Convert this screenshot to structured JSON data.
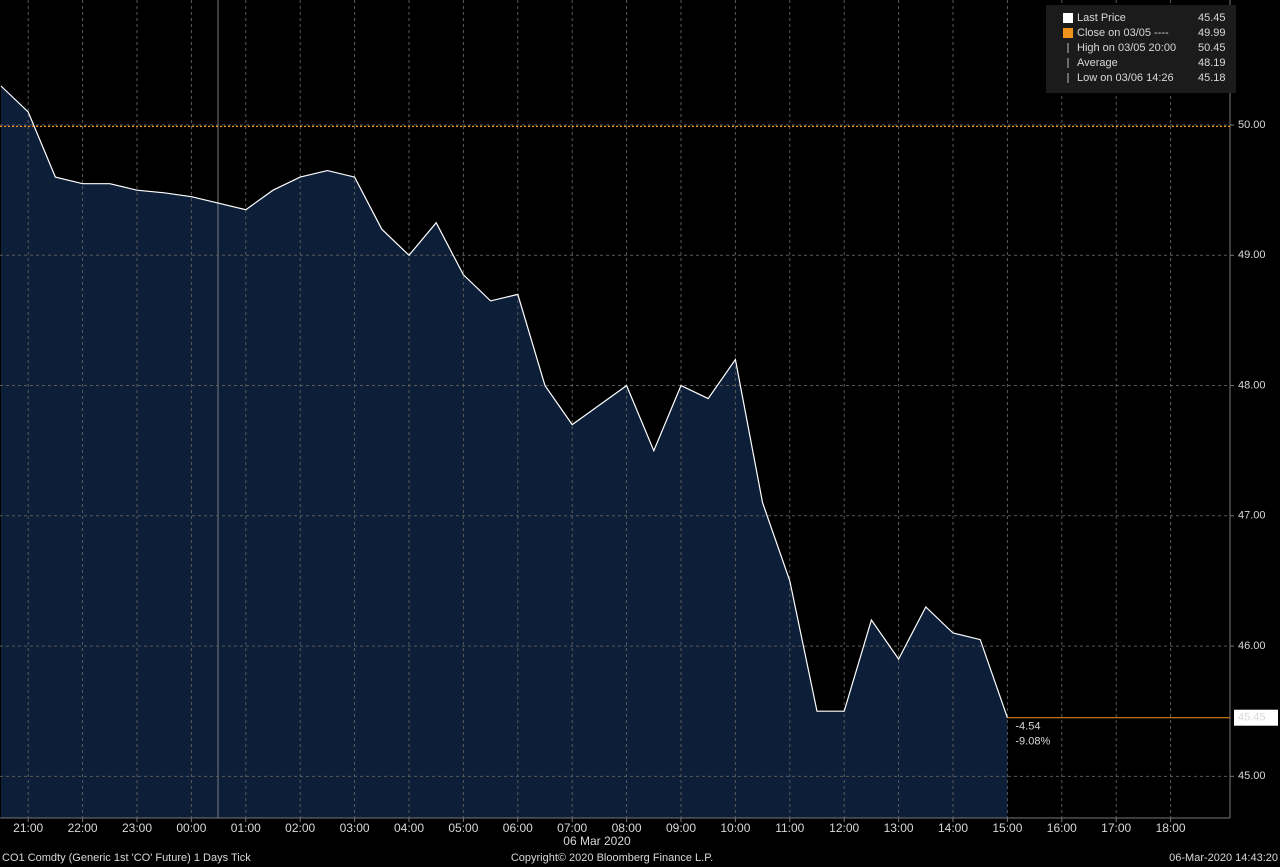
{
  "chart_data": {
    "type": "area",
    "title": "CO1 Comdty (Generic 1st 'CO' Future) 1 Days  Tick",
    "date_label": "06 Mar 2020",
    "copyright": "Copyright© 2020 Bloomberg Finance L.P.",
    "timestamp": "06-Mar-2020 14:43:20",
    "categories": [
      null,
      "21:00",
      null,
      "22:00",
      null,
      "23:00",
      null,
      "00:00",
      null,
      "01:00",
      null,
      "02:00",
      null,
      "03:00",
      null,
      "04:00",
      null,
      "05:00",
      null,
      "06:00",
      null,
      "07:00",
      null,
      "08:00",
      null,
      "09:00",
      null,
      "10:00",
      null,
      "11:00",
      null,
      "12:00",
      null,
      "13:00",
      null,
      "14:00",
      null,
      "15:00",
      null,
      "16:00",
      null,
      "17:00",
      null,
      "18:00",
      null,
      null
    ],
    "series": [
      {
        "name": "Last Price",
        "color": "#ffffff",
        "fill": "#0c1e38",
        "values": [
          50.3,
          50.1,
          49.6,
          49.55,
          49.55,
          49.5,
          49.48,
          49.45,
          49.4,
          49.35,
          49.5,
          49.6,
          49.65,
          49.6,
          49.2,
          49.0,
          49.25,
          48.85,
          48.65,
          48.7,
          48.0,
          47.7,
          47.85,
          48.0,
          47.5,
          48.0,
          47.9,
          48.2,
          47.1,
          46.5,
          45.5,
          45.5,
          46.2,
          45.9,
          46.3,
          46.1,
          46.05,
          45.45,
          null,
          null,
          null,
          null,
          null,
          null,
          null,
          null
        ]
      }
    ],
    "ylim": [
      44.68,
      50.96
    ],
    "yticks": [
      {
        "value": 45,
        "label": "45.00"
      },
      {
        "value": 46,
        "label": "46.00"
      },
      {
        "value": 47,
        "label": "47.00"
      },
      {
        "value": 48,
        "label": "48.00"
      },
      {
        "value": 49,
        "label": "49.00"
      },
      {
        "value": 50,
        "label": "50.00"
      }
    ],
    "grid": true,
    "legend": [
      {
        "label": "Last Price",
        "value": 45.45,
        "color": "#ffffff"
      },
      {
        "label": "Close on 03/05 ----",
        "value": 49.99,
        "color": "#f0921e"
      },
      {
        "label": "High on 03/05 20:00",
        "value": 50.45,
        "color": "#bbbbbb"
      },
      {
        "label": "Average",
        "value": 48.19,
        "color": "#bbbbbb"
      },
      {
        "label": "Low on 03/06 14:26",
        "value": 45.18,
        "color": "#bbbbbb"
      }
    ],
    "change": "-4.54",
    "change_pct": "-9.08%",
    "accent_color": "#f0921e"
  }
}
